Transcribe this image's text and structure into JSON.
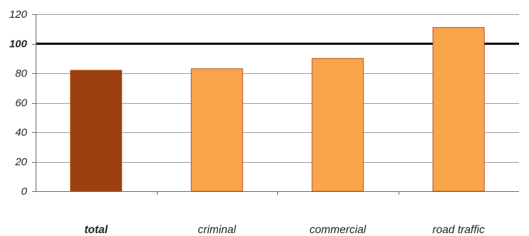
{
  "chart_data": {
    "type": "bar",
    "categories": [
      "total",
      "criminal",
      "commercial",
      "road traffic"
    ],
    "values": [
      82,
      83,
      90,
      111
    ],
    "bar_colors": [
      "#9b3f10",
      "#f9a54b",
      "#f9a54b",
      "#f9a54b"
    ],
    "bar_outline_color": "#b4501a",
    "title": "",
    "xlabel": "",
    "ylabel": "",
    "ylim": [
      0,
      120
    ],
    "yticks": [
      0,
      20,
      40,
      60,
      80,
      100,
      120
    ],
    "ytick_labels": [
      "0",
      "20",
      "40",
      "60",
      "80",
      "100",
      "120"
    ],
    "grid": true,
    "reference_line": {
      "value": 100,
      "color": "#000000"
    },
    "emphasized_category": "total",
    "emphasized_tick": "100"
  }
}
